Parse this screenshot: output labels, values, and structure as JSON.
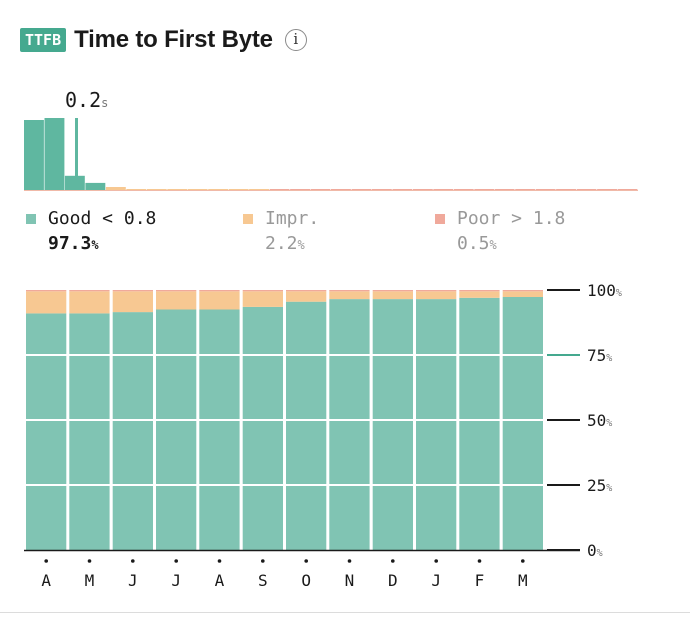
{
  "header": {
    "badge": "TTFB",
    "title": "Time to First Byte",
    "info_icon": "i"
  },
  "median": {
    "value": "0.2",
    "unit": "s"
  },
  "legend": {
    "good": {
      "label": "Good < 0.8",
      "value": "97.3",
      "unit": "%",
      "color": "#80c4b3"
    },
    "impr": {
      "label": "Impr.",
      "value": "2.2",
      "unit": "%",
      "color": "#f7c892"
    },
    "poor": {
      "label": "Poor > 1.8",
      "value": "0.5",
      "unit": "%",
      "color": "#f0a99b"
    }
  },
  "chart_data": [
    {
      "type": "bar",
      "description": "histogram",
      "values": [
        69,
        71,
        14,
        7,
        3,
        1,
        1,
        1,
        1,
        1,
        1,
        1,
        1,
        1,
        1,
        1,
        1,
        1,
        1,
        1,
        1,
        1,
        1,
        1,
        1,
        1,
        1,
        1,
        1,
        1
      ],
      "ylim": [
        0,
        71
      ],
      "colors": {
        "good": "#5fb7a0",
        "impr": "#f7c892",
        "poor": "#f0a99b"
      }
    },
    {
      "type": "bar",
      "stacked": true,
      "categories": [
        "A",
        "M",
        "J",
        "J",
        "A",
        "S",
        "O",
        "N",
        "D",
        "J",
        "F",
        "M"
      ],
      "series": [
        {
          "key": "good",
          "values": [
            91,
            91,
            91.5,
            92.5,
            92.5,
            93.5,
            95.5,
            96.5,
            96.5,
            96.5,
            97,
            97.3
          ],
          "color": "#80c4b3"
        },
        {
          "key": "impr",
          "values": [
            8.5,
            8.5,
            8,
            7,
            7,
            6,
            4,
            3,
            3,
            3,
            2.5,
            2.2
          ],
          "color": "#f7c892"
        },
        {
          "key": "poor",
          "values": [
            0.5,
            0.5,
            0.5,
            0.5,
            0.5,
            0.5,
            0.5,
            0.5,
            0.5,
            0.5,
            0.5,
            0.5
          ],
          "color": "#f0a99b"
        }
      ],
      "ylim": [
        0,
        100
      ],
      "yticks": [
        {
          "value": 100,
          "label": "100",
          "unit": "%"
        },
        {
          "value": 75,
          "label": "75",
          "unit": "%"
        },
        {
          "value": 50,
          "label": "50",
          "unit": "%"
        },
        {
          "value": 25,
          "label": "25",
          "unit": "%"
        },
        {
          "value": 0,
          "label": "0",
          "unit": "%"
        }
      ],
      "tick_colors": {
        "default": "#1a1a1a",
        "highlight": "#45a98f"
      },
      "highlight_tick": 75
    }
  ]
}
